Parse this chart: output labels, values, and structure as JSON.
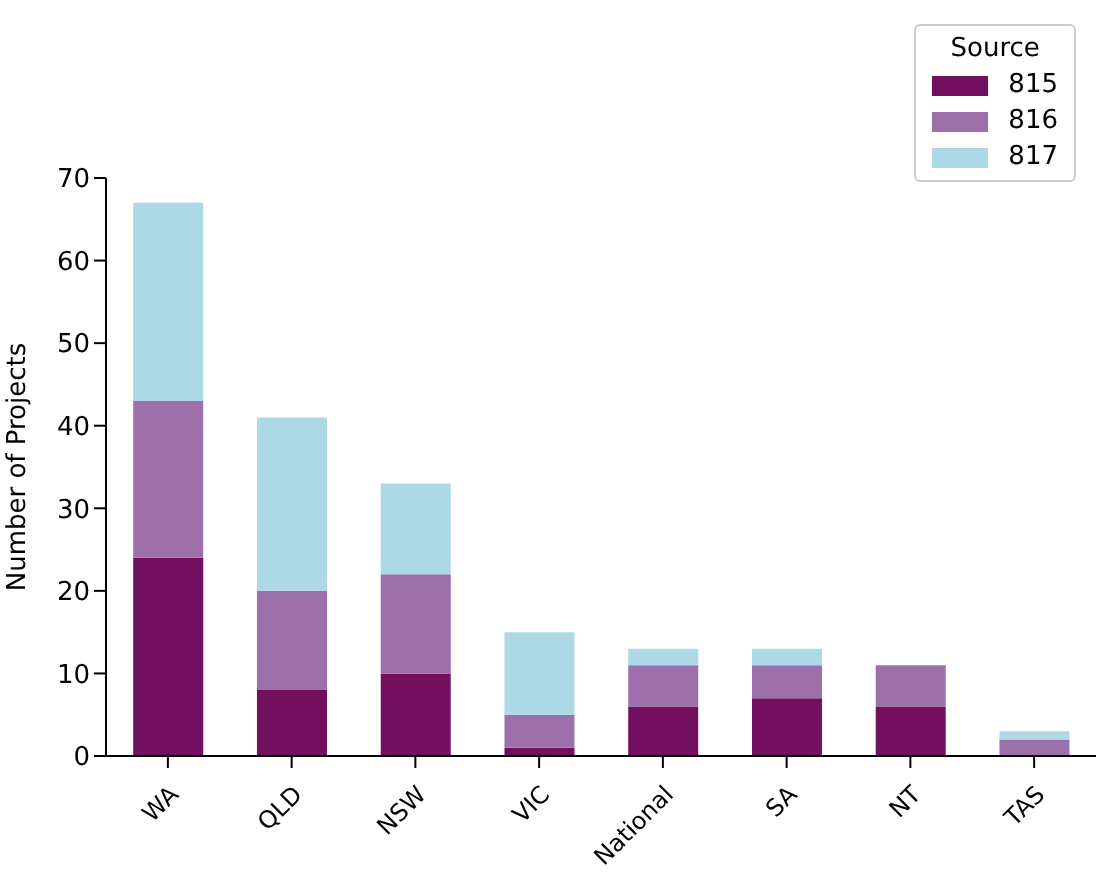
{
  "chart_data": {
    "type": "bar",
    "stacked": true,
    "ylabel": "Number of Projects",
    "legend_title": "Source",
    "legend": "top right",
    "categories": [
      "WA",
      "QLD",
      "NSW",
      "VIC",
      "National",
      "SA",
      "NT",
      "TAS"
    ],
    "series": [
      {
        "name": "815",
        "color": "#730f5f",
        "values": [
          24,
          8,
          10,
          1,
          6,
          7,
          6,
          0
        ]
      },
      {
        "name": "816",
        "color": "#9d6fab",
        "values": [
          19,
          12,
          12,
          4,
          5,
          4,
          5,
          2
        ]
      },
      {
        "name": "817",
        "color": "#add8e6",
        "values": [
          24,
          21,
          11,
          10,
          2,
          2,
          0,
          1
        ]
      }
    ],
    "ylim": [
      0,
      70
    ],
    "yticks": [
      0,
      10,
      20,
      30,
      40,
      50,
      60,
      70
    ],
    "grid": false
  }
}
